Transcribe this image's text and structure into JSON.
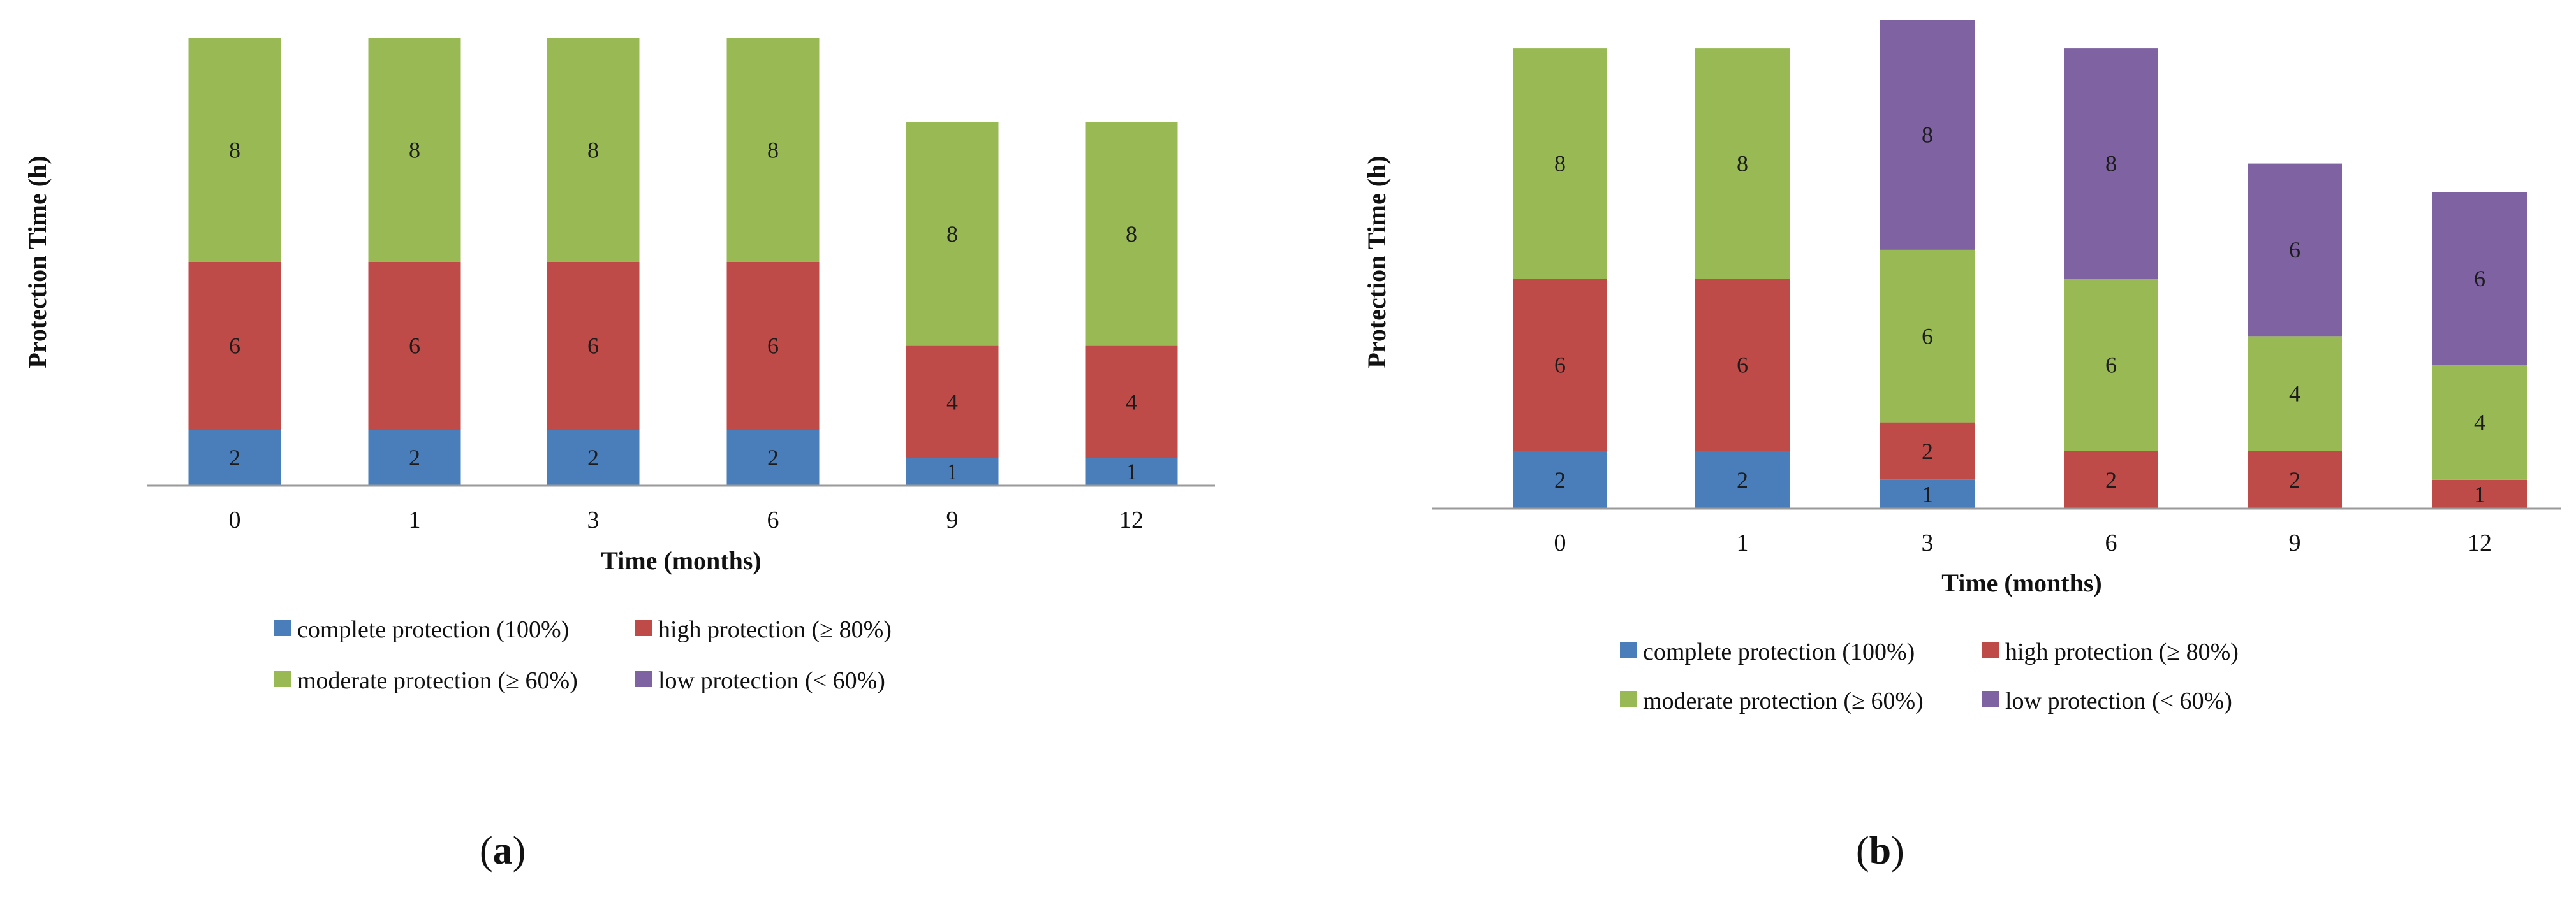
{
  "colors": {
    "complete": "#4a7ebb",
    "high": "#be4b48",
    "moderate": "#98b954",
    "low": "#7e62a1",
    "axis": "#9a9a9a"
  },
  "captions": {
    "a_open": "(",
    "a_letter": "a",
    "a_close": ")",
    "b_open": "(",
    "b_letter": "b",
    "b_close": ")"
  },
  "chart_data": [
    {
      "type": "bar",
      "stacked": true,
      "panel": "a",
      "title": "",
      "xlabel": "Time (months)",
      "ylabel": "Protection Time (h)",
      "categories": [
        "0",
        "1",
        "3",
        "6",
        "9",
        "12"
      ],
      "series": [
        {
          "name": "complete protection (100%)",
          "key": "complete",
          "values": [
            2,
            2,
            2,
            2,
            1,
            1
          ]
        },
        {
          "name": "high protection (≥ 80%)",
          "key": "high",
          "values": [
            6,
            6,
            6,
            6,
            4,
            4
          ]
        },
        {
          "name": "moderate protection (≥ 60%)",
          "key": "moderate",
          "values": [
            8,
            8,
            8,
            8,
            8,
            8
          ]
        },
        {
          "name": "low protection (< 60%)",
          "key": "low",
          "values": [
            0,
            0,
            0,
            0,
            0,
            0
          ]
        }
      ],
      "legend": {
        "row1": [
          {
            "label": "complete protection (100%)",
            "key": "complete"
          },
          {
            "label": "high protection (≥ 80%)",
            "key": "high"
          }
        ],
        "row2": [
          {
            "label": "moderate protection (≥ 60%)",
            "key": "moderate"
          },
          {
            "label": "low protection (< 60%)",
            "key": "low"
          }
        ]
      }
    },
    {
      "type": "bar",
      "stacked": true,
      "panel": "b",
      "title": "",
      "xlabel": "Time (months)",
      "ylabel": "Protection Time (h)",
      "categories": [
        "0",
        "1",
        "3",
        "6",
        "9",
        "12"
      ],
      "series": [
        {
          "name": "complete protection (100%)",
          "key": "complete",
          "values": [
            2,
            2,
            1,
            0,
            0,
            0
          ]
        },
        {
          "name": "high protection (≥ 80%)",
          "key": "high",
          "values": [
            6,
            6,
            2,
            2,
            2,
            1
          ]
        },
        {
          "name": "moderate protection (≥ 60%)",
          "key": "moderate",
          "values": [
            8,
            8,
            6,
            6,
            4,
            4
          ]
        },
        {
          "name": "low protection (< 60%)",
          "key": "low",
          "values": [
            0,
            0,
            8,
            8,
            6,
            6
          ]
        }
      ],
      "legend": {
        "row1": [
          {
            "label": "complete protection (100%)",
            "key": "complete"
          },
          {
            "label": "high protection (≥ 80%)",
            "key": "high"
          }
        ],
        "row2": [
          {
            "label": "moderate protection (≥ 60%)",
            "key": "moderate"
          },
          {
            "label": "low protection (< 60%)",
            "key": "low"
          }
        ]
      }
    }
  ]
}
